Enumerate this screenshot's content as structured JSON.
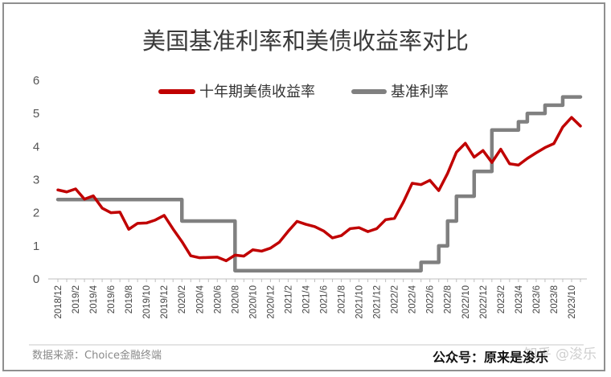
{
  "chart_data": {
    "type": "line",
    "title": "美国基准利率和美债收益率对比",
    "xlabel": "",
    "ylabel": "",
    "ylim": [
      0,
      6
    ],
    "yticks": [
      0,
      1,
      2,
      3,
      4,
      5,
      6
    ],
    "grid": false,
    "legend_position": "top-center",
    "x": [
      "2018/12",
      "2019/1",
      "2019/2",
      "2019/3",
      "2019/4",
      "2019/5",
      "2019/6",
      "2019/7",
      "2019/8",
      "2019/9",
      "2019/10",
      "2019/11",
      "2019/12",
      "2020/1",
      "2020/2",
      "2020/3",
      "2020/4",
      "2020/5",
      "2020/6",
      "2020/7",
      "2020/8",
      "2020/9",
      "2020/10",
      "2020/11",
      "2020/12",
      "2021/1",
      "2021/2",
      "2021/3",
      "2021/4",
      "2021/5",
      "2021/6",
      "2021/7",
      "2021/8",
      "2021/9",
      "2021/10",
      "2021/11",
      "2021/12",
      "2022/1",
      "2022/2",
      "2022/3",
      "2022/4",
      "2022/5",
      "2022/6",
      "2022/7",
      "2022/8",
      "2022/9",
      "2022/10",
      "2022/11",
      "2022/12",
      "2023/1",
      "2023/2",
      "2023/3",
      "2023/4",
      "2023/5",
      "2023/6",
      "2023/7",
      "2023/8",
      "2023/9",
      "2023/10",
      "2023/11"
    ],
    "xtick_labels": [
      "2018/12",
      "2019/2",
      "2019/4",
      "2019/6",
      "2019/8",
      "2019/10",
      "2019/12",
      "2020/2",
      "2020/4",
      "2020/6",
      "2020/8",
      "2020/10",
      "2020/12",
      "2021/2",
      "2021/4",
      "2021/6",
      "2021/8",
      "2021/10",
      "2021/12",
      "2022/2",
      "2022/4",
      "2022/6",
      "2022/8",
      "2022/10",
      "2022/12",
      "2023/2",
      "2023/4",
      "2023/6",
      "2023/8",
      "2023/10"
    ],
    "series": [
      {
        "name": "十年期美债收益率",
        "color": "#c00000",
        "values": [
          2.69,
          2.63,
          2.72,
          2.41,
          2.51,
          2.14,
          2.0,
          2.02,
          1.5,
          1.68,
          1.69,
          1.78,
          1.92,
          1.51,
          1.13,
          0.7,
          0.64,
          0.65,
          0.66,
          0.55,
          0.72,
          0.69,
          0.88,
          0.84,
          0.93,
          1.11,
          1.44,
          1.74,
          1.65,
          1.58,
          1.45,
          1.24,
          1.31,
          1.52,
          1.55,
          1.43,
          1.52,
          1.79,
          1.83,
          2.32,
          2.89,
          2.85,
          2.98,
          2.67,
          3.19,
          3.83,
          4.1,
          3.68,
          3.88,
          3.52,
          3.92,
          3.48,
          3.44,
          3.64,
          3.81,
          3.97,
          4.09,
          4.59,
          4.88,
          4.62
        ]
      },
      {
        "name": "基准利率",
        "color": "#808080",
        "values": [
          2.4,
          2.4,
          2.4,
          2.4,
          2.4,
          2.4,
          2.4,
          2.4,
          2.4,
          2.4,
          2.4,
          2.4,
          2.4,
          2.4,
          1.75,
          1.75,
          1.75,
          1.75,
          1.75,
          1.75,
          0.25,
          0.25,
          0.25,
          0.25,
          0.25,
          0.25,
          0.25,
          0.25,
          0.25,
          0.25,
          0.25,
          0.25,
          0.25,
          0.25,
          0.25,
          0.25,
          0.25,
          0.25,
          0.25,
          0.25,
          0.25,
          0.5,
          0.5,
          1.0,
          1.75,
          2.5,
          2.5,
          3.25,
          3.25,
          4.5,
          4.5,
          4.5,
          4.75,
          5.0,
          5.0,
          5.25,
          5.25,
          5.5,
          5.5,
          5.5
        ]
      }
    ],
    "source_note": "数据来源：Choice金融终端",
    "wechat_label": "公众号：原来是浚乐",
    "watermark": "知乎 @浚乐"
  }
}
